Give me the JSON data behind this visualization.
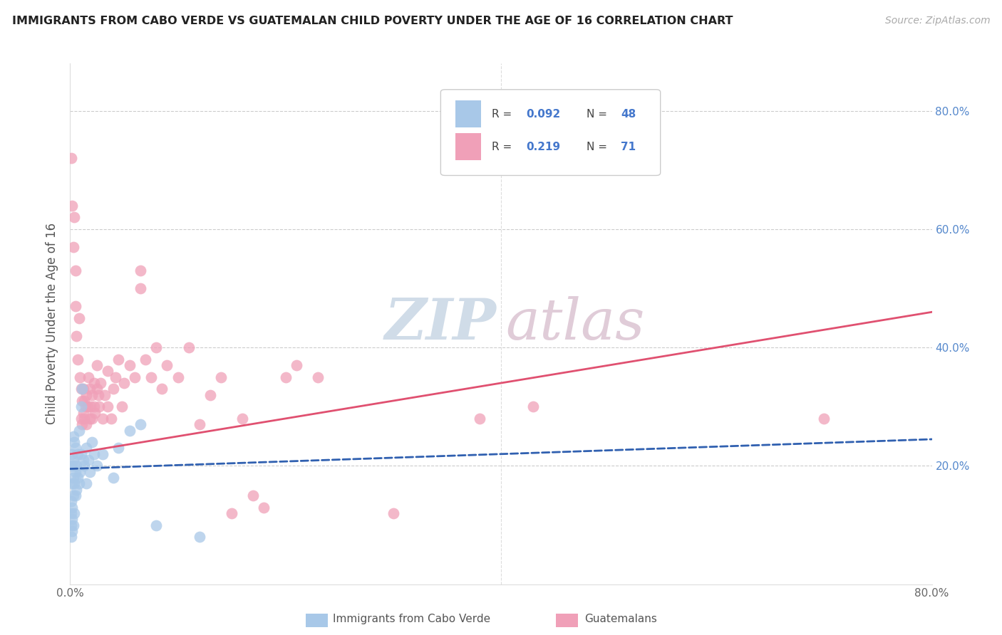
{
  "title": "IMMIGRANTS FROM CABO VERDE VS GUATEMALAN CHILD POVERTY UNDER THE AGE OF 16 CORRELATION CHART",
  "source": "Source: ZipAtlas.com",
  "ylabel": "Child Poverty Under the Age of 16",
  "xlim": [
    0,
    0.8
  ],
  "ylim": [
    0,
    0.88
  ],
  "cabo_verde_color": "#a8c8e8",
  "guatemalan_color": "#f0a0b8",
  "cabo_verde_line_color": "#3060b0",
  "guatemalan_line_color": "#e05070",
  "watermark_zip_color": "#d0dce8",
  "watermark_atlas_color": "#e0ccd8",
  "cabo_verde_scatter": [
    [
      0.001,
      0.08
    ],
    [
      0.001,
      0.1
    ],
    [
      0.001,
      0.12
    ],
    [
      0.001,
      0.14
    ],
    [
      0.002,
      0.09
    ],
    [
      0.002,
      0.11
    ],
    [
      0.002,
      0.13
    ],
    [
      0.002,
      0.17
    ],
    [
      0.002,
      0.2
    ],
    [
      0.002,
      0.22
    ],
    [
      0.003,
      0.1
    ],
    [
      0.003,
      0.15
    ],
    [
      0.003,
      0.18
    ],
    [
      0.003,
      0.21
    ],
    [
      0.003,
      0.25
    ],
    [
      0.004,
      0.12
    ],
    [
      0.004,
      0.17
    ],
    [
      0.004,
      0.2
    ],
    [
      0.004,
      0.24
    ],
    [
      0.005,
      0.15
    ],
    [
      0.005,
      0.19
    ],
    [
      0.005,
      0.23
    ],
    [
      0.006,
      0.16
    ],
    [
      0.006,
      0.2
    ],
    [
      0.007,
      0.18
    ],
    [
      0.007,
      0.22
    ],
    [
      0.008,
      0.17
    ],
    [
      0.008,
      0.26
    ],
    [
      0.009,
      0.19
    ],
    [
      0.01,
      0.22
    ],
    [
      0.01,
      0.3
    ],
    [
      0.011,
      0.33
    ],
    [
      0.012,
      0.21
    ],
    [
      0.013,
      0.2
    ],
    [
      0.015,
      0.17
    ],
    [
      0.015,
      0.23
    ],
    [
      0.017,
      0.21
    ],
    [
      0.018,
      0.19
    ],
    [
      0.02,
      0.24
    ],
    [
      0.022,
      0.22
    ],
    [
      0.025,
      0.2
    ],
    [
      0.03,
      0.22
    ],
    [
      0.04,
      0.18
    ],
    [
      0.045,
      0.23
    ],
    [
      0.055,
      0.26
    ],
    [
      0.065,
      0.27
    ],
    [
      0.08,
      0.1
    ],
    [
      0.12,
      0.08
    ]
  ],
  "guatemalan_scatter": [
    [
      0.001,
      0.72
    ],
    [
      0.002,
      0.64
    ],
    [
      0.003,
      0.57
    ],
    [
      0.004,
      0.62
    ],
    [
      0.005,
      0.53
    ],
    [
      0.005,
      0.47
    ],
    [
      0.006,
      0.42
    ],
    [
      0.007,
      0.38
    ],
    [
      0.008,
      0.45
    ],
    [
      0.009,
      0.35
    ],
    [
      0.01,
      0.33
    ],
    [
      0.01,
      0.28
    ],
    [
      0.011,
      0.31
    ],
    [
      0.011,
      0.27
    ],
    [
      0.012,
      0.29
    ],
    [
      0.012,
      0.33
    ],
    [
      0.013,
      0.31
    ],
    [
      0.013,
      0.28
    ],
    [
      0.014,
      0.3
    ],
    [
      0.015,
      0.27
    ],
    [
      0.015,
      0.32
    ],
    [
      0.016,
      0.3
    ],
    [
      0.017,
      0.35
    ],
    [
      0.018,
      0.28
    ],
    [
      0.018,
      0.33
    ],
    [
      0.019,
      0.3
    ],
    [
      0.02,
      0.32
    ],
    [
      0.02,
      0.28
    ],
    [
      0.022,
      0.3
    ],
    [
      0.022,
      0.34
    ],
    [
      0.023,
      0.29
    ],
    [
      0.025,
      0.33
    ],
    [
      0.025,
      0.37
    ],
    [
      0.026,
      0.32
    ],
    [
      0.027,
      0.3
    ],
    [
      0.028,
      0.34
    ],
    [
      0.03,
      0.28
    ],
    [
      0.032,
      0.32
    ],
    [
      0.035,
      0.3
    ],
    [
      0.035,
      0.36
    ],
    [
      0.038,
      0.28
    ],
    [
      0.04,
      0.33
    ],
    [
      0.042,
      0.35
    ],
    [
      0.045,
      0.38
    ],
    [
      0.048,
      0.3
    ],
    [
      0.05,
      0.34
    ],
    [
      0.055,
      0.37
    ],
    [
      0.06,
      0.35
    ],
    [
      0.065,
      0.5
    ],
    [
      0.065,
      0.53
    ],
    [
      0.07,
      0.38
    ],
    [
      0.075,
      0.35
    ],
    [
      0.08,
      0.4
    ],
    [
      0.085,
      0.33
    ],
    [
      0.09,
      0.37
    ],
    [
      0.1,
      0.35
    ],
    [
      0.11,
      0.4
    ],
    [
      0.12,
      0.27
    ],
    [
      0.13,
      0.32
    ],
    [
      0.14,
      0.35
    ],
    [
      0.15,
      0.12
    ],
    [
      0.16,
      0.28
    ],
    [
      0.17,
      0.15
    ],
    [
      0.18,
      0.13
    ],
    [
      0.2,
      0.35
    ],
    [
      0.21,
      0.37
    ],
    [
      0.23,
      0.35
    ],
    [
      0.3,
      0.12
    ],
    [
      0.38,
      0.28
    ],
    [
      0.43,
      0.3
    ],
    [
      0.7,
      0.28
    ]
  ],
  "cabo_verde_trendline": [
    0.0,
    0.8,
    0.195,
    0.245
  ],
  "guatemalan_trendline": [
    0.0,
    0.8,
    0.22,
    0.46
  ]
}
